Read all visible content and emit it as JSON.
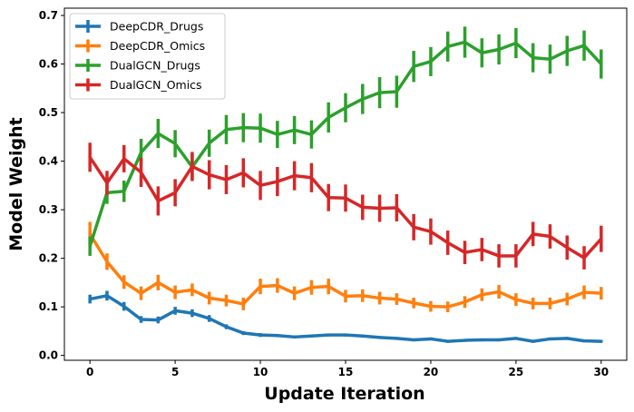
{
  "chart_data": {
    "type": "line",
    "title": "",
    "xlabel": "Update Iteration",
    "ylabel": "Model Weight",
    "xlim": [
      -1.5,
      31.5
    ],
    "ylim": [
      -0.01,
      0.715
    ],
    "xticks": [
      0,
      5,
      10,
      15,
      20,
      25,
      30
    ],
    "xtick_labels": [
      "0",
      "5",
      "10",
      "15",
      "20",
      "25",
      "30"
    ],
    "yticks": [
      0.0,
      0.1,
      0.2,
      0.3,
      0.4,
      0.5,
      0.6,
      0.7
    ],
    "ytick_labels": [
      "0.0",
      "0.1",
      "0.2",
      "0.3",
      "0.4",
      "0.5",
      "0.6",
      "0.7"
    ],
    "grid": false,
    "legend_position": "top-left",
    "x": [
      0,
      1,
      2,
      3,
      4,
      5,
      6,
      7,
      8,
      9,
      10,
      11,
      12,
      13,
      14,
      15,
      16,
      17,
      18,
      19,
      20,
      21,
      22,
      23,
      24,
      25,
      26,
      27,
      28,
      29,
      30
    ],
    "series": [
      {
        "name": "DeepCDR_Drugs",
        "color": "#1f77b4",
        "values": [
          0.116,
          0.123,
          0.101,
          0.074,
          0.073,
          0.092,
          0.087,
          0.076,
          0.059,
          0.046,
          0.042,
          0.041,
          0.038,
          0.04,
          0.042,
          0.042,
          0.04,
          0.037,
          0.035,
          0.032,
          0.034,
          0.029,
          0.031,
          0.032,
          0.032,
          0.035,
          0.029,
          0.034,
          0.035,
          0.03,
          0.029
        ],
        "errors": [
          0.009,
          0.01,
          0.009,
          0.007,
          0.007,
          0.008,
          0.008,
          0.007,
          0.005,
          0.004,
          0.004,
          0.003,
          0.003,
          0.003,
          0.003,
          0.003,
          0.003,
          0.003,
          0.003,
          0.003,
          0.003,
          0.003,
          0.003,
          0.003,
          0.003,
          0.003,
          0.003,
          0.003,
          0.003,
          0.003,
          0.003
        ]
      },
      {
        "name": "DeepCDR_Omics",
        "color": "#ff7f0e",
        "values": [
          0.25,
          0.193,
          0.151,
          0.128,
          0.15,
          0.13,
          0.135,
          0.118,
          0.113,
          0.106,
          0.142,
          0.144,
          0.128,
          0.14,
          0.142,
          0.122,
          0.123,
          0.118,
          0.116,
          0.108,
          0.101,
          0.1,
          0.11,
          0.125,
          0.131,
          0.115,
          0.107,
          0.107,
          0.116,
          0.13,
          0.128
        ],
        "errors": [
          0.025,
          0.017,
          0.014,
          0.014,
          0.016,
          0.014,
          0.013,
          0.013,
          0.012,
          0.013,
          0.016,
          0.015,
          0.014,
          0.015,
          0.016,
          0.013,
          0.013,
          0.013,
          0.012,
          0.011,
          0.011,
          0.011,
          0.012,
          0.013,
          0.014,
          0.013,
          0.012,
          0.012,
          0.013,
          0.014,
          0.013
        ]
      },
      {
        "name": "DualGCN_Drugs",
        "color": "#2ca02c",
        "values": [
          0.225,
          0.335,
          0.338,
          0.418,
          0.457,
          0.436,
          0.388,
          0.437,
          0.465,
          0.469,
          0.468,
          0.455,
          0.464,
          0.455,
          0.49,
          0.51,
          0.528,
          0.541,
          0.543,
          0.595,
          0.605,
          0.636,
          0.645,
          0.623,
          0.63,
          0.643,
          0.613,
          0.61,
          0.627,
          0.638,
          0.6
        ],
        "errors": [
          0.02,
          0.023,
          0.022,
          0.028,
          0.03,
          0.028,
          0.026,
          0.028,
          0.03,
          0.03,
          0.03,
          0.028,
          0.029,
          0.029,
          0.031,
          0.03,
          0.031,
          0.032,
          0.033,
          0.032,
          0.03,
          0.031,
          0.032,
          0.03,
          0.031,
          0.031,
          0.03,
          0.03,
          0.031,
          0.031,
          0.03
        ]
      },
      {
        "name": "DualGCN_Omics",
        "color": "#d62728",
        "values": [
          0.408,
          0.355,
          0.405,
          0.377,
          0.318,
          0.335,
          0.389,
          0.372,
          0.362,
          0.376,
          0.35,
          0.358,
          0.37,
          0.366,
          0.325,
          0.324,
          0.305,
          0.303,
          0.304,
          0.264,
          0.255,
          0.232,
          0.212,
          0.218,
          0.205,
          0.205,
          0.25,
          0.245,
          0.222,
          0.201,
          0.24
        ],
        "errors": [
          0.03,
          0.025,
          0.028,
          0.03,
          0.03,
          0.028,
          0.03,
          0.03,
          0.03,
          0.03,
          0.03,
          0.03,
          0.03,
          0.03,
          0.028,
          0.028,
          0.026,
          0.028,
          0.028,
          0.027,
          0.027,
          0.025,
          0.024,
          0.024,
          0.024,
          0.024,
          0.025,
          0.025,
          0.025,
          0.024,
          0.027
        ]
      }
    ]
  }
}
